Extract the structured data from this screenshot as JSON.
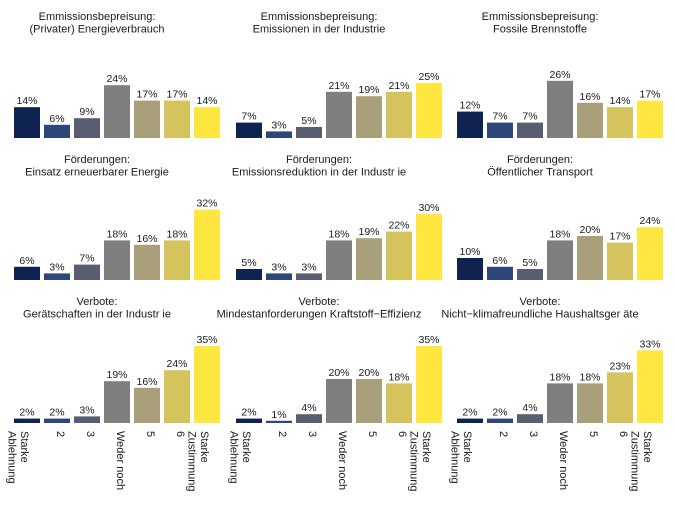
{
  "colors": [
    "#0f2350",
    "#2d4778",
    "#585e70",
    "#7f7f7f",
    "#a99f7a",
    "#d5c35e",
    "#ffe640"
  ],
  "x_tick_labels": [
    [
      "Starke",
      "Ablehnung"
    ],
    [
      "2"
    ],
    [
      "3"
    ],
    [
      "Weder noch"
    ],
    [
      "5"
    ],
    [
      "6"
    ],
    [
      "Starke",
      "Zustimmung"
    ]
  ],
  "chart_data": [
    {
      "type": "bar",
      "title": [
        "Emmissionsbepreisung:",
        "(Privater) Energieverbrauch"
      ],
      "categories": [
        "Starke Ablehnung",
        "2",
        "3",
        "Weder noch",
        "5",
        "6",
        "Starke Zustimmung"
      ],
      "values": [
        14,
        6,
        9,
        24,
        17,
        17,
        14
      ],
      "data_labels": [
        "14%",
        "6%",
        "9%",
        "24%",
        "17%",
        "17%",
        "14%"
      ]
    },
    {
      "type": "bar",
      "title": [
        "Emmissionsbepreisung:",
        "Emissionen in der Industrie"
      ],
      "categories": [
        "Starke Ablehnung",
        "2",
        "3",
        "Weder noch",
        "5",
        "6",
        "Starke Zustimmung"
      ],
      "values": [
        7,
        3,
        5,
        21,
        19,
        21,
        25
      ],
      "data_labels": [
        "7%",
        "3%",
        "5%",
        "21%",
        "19%",
        "21%",
        "25%"
      ]
    },
    {
      "type": "bar",
      "title": [
        "Emmissionsbepreisung:",
        "Fossile Brennstoffe"
      ],
      "categories": [
        "Starke Ablehnung",
        "2",
        "3",
        "Weder noch",
        "5",
        "6",
        "Starke Zustimmung"
      ],
      "values": [
        12,
        7,
        7,
        26,
        16,
        14,
        17
      ],
      "data_labels": [
        "12%",
        "7%",
        "7%",
        "26%",
        "16%",
        "14%",
        "17%"
      ]
    },
    {
      "type": "bar",
      "title": [
        "Förderungen:",
        "Einsatz erneuerbarer Energie"
      ],
      "categories": [
        "Starke Ablehnung",
        "2",
        "3",
        "Weder noch",
        "5",
        "6",
        "Starke Zustimmung"
      ],
      "values": [
        6,
        3,
        7,
        18,
        16,
        18,
        32
      ],
      "data_labels": [
        "6%",
        "3%",
        "7%",
        "18%",
        "16%",
        "18%",
        "32%"
      ]
    },
    {
      "type": "bar",
      "title": [
        "Förderungen:",
        "Emissionsreduktion in der Industr ie"
      ],
      "categories": [
        "Starke Ablehnung",
        "2",
        "3",
        "Weder noch",
        "5",
        "6",
        "Starke Zustimmung"
      ],
      "values": [
        5,
        3,
        3,
        18,
        19,
        22,
        30
      ],
      "data_labels": [
        "5%",
        "3%",
        "3%",
        "18%",
        "19%",
        "22%",
        "30%"
      ]
    },
    {
      "type": "bar",
      "title": [
        "Förderungen:",
        "Öffentlicher Transport"
      ],
      "categories": [
        "Starke Ablehnung",
        "2",
        "3",
        "Weder noch",
        "5",
        "6",
        "Starke Zustimmung"
      ],
      "values": [
        10,
        6,
        5,
        18,
        20,
        17,
        24
      ],
      "data_labels": [
        "10%",
        "6%",
        "5%",
        "18%",
        "20%",
        "17%",
        "24%"
      ]
    },
    {
      "type": "bar",
      "title": [
        "Verbote:",
        "Gerätschaften in der Industr ie"
      ],
      "categories": [
        "Starke Ablehnung",
        "2",
        "3",
        "Weder noch",
        "5",
        "6",
        "Starke Zustimmung"
      ],
      "values": [
        2,
        2,
        3,
        19,
        16,
        24,
        35
      ],
      "data_labels": [
        "2%",
        "2%",
        "3%",
        "19%",
        "16%",
        "24%",
        "35%"
      ]
    },
    {
      "type": "bar",
      "title": [
        "Verbote:",
        "Mindestanforderungen Kraftstoff−Effizienz"
      ],
      "categories": [
        "Starke Ablehnung",
        "2",
        "3",
        "Weder noch",
        "5",
        "6",
        "Starke Zustimmung"
      ],
      "values": [
        2,
        1,
        4,
        20,
        20,
        18,
        35
      ],
      "data_labels": [
        "2%",
        "1%",
        "4%",
        "20%",
        "20%",
        "18%",
        "35%"
      ]
    },
    {
      "type": "bar",
      "title": [
        "Verbote:",
        "Nicht−klimafreundliche Haushaltsger äte"
      ],
      "categories": [
        "Starke Ablehnung",
        "2",
        "3",
        "Weder noch",
        "5",
        "6",
        "Starke Zustimmung"
      ],
      "values": [
        2,
        2,
        4,
        18,
        18,
        23,
        33
      ],
      "data_labels": [
        "2%",
        "2%",
        "4%",
        "18%",
        "18%",
        "23%",
        "33%"
      ]
    }
  ]
}
